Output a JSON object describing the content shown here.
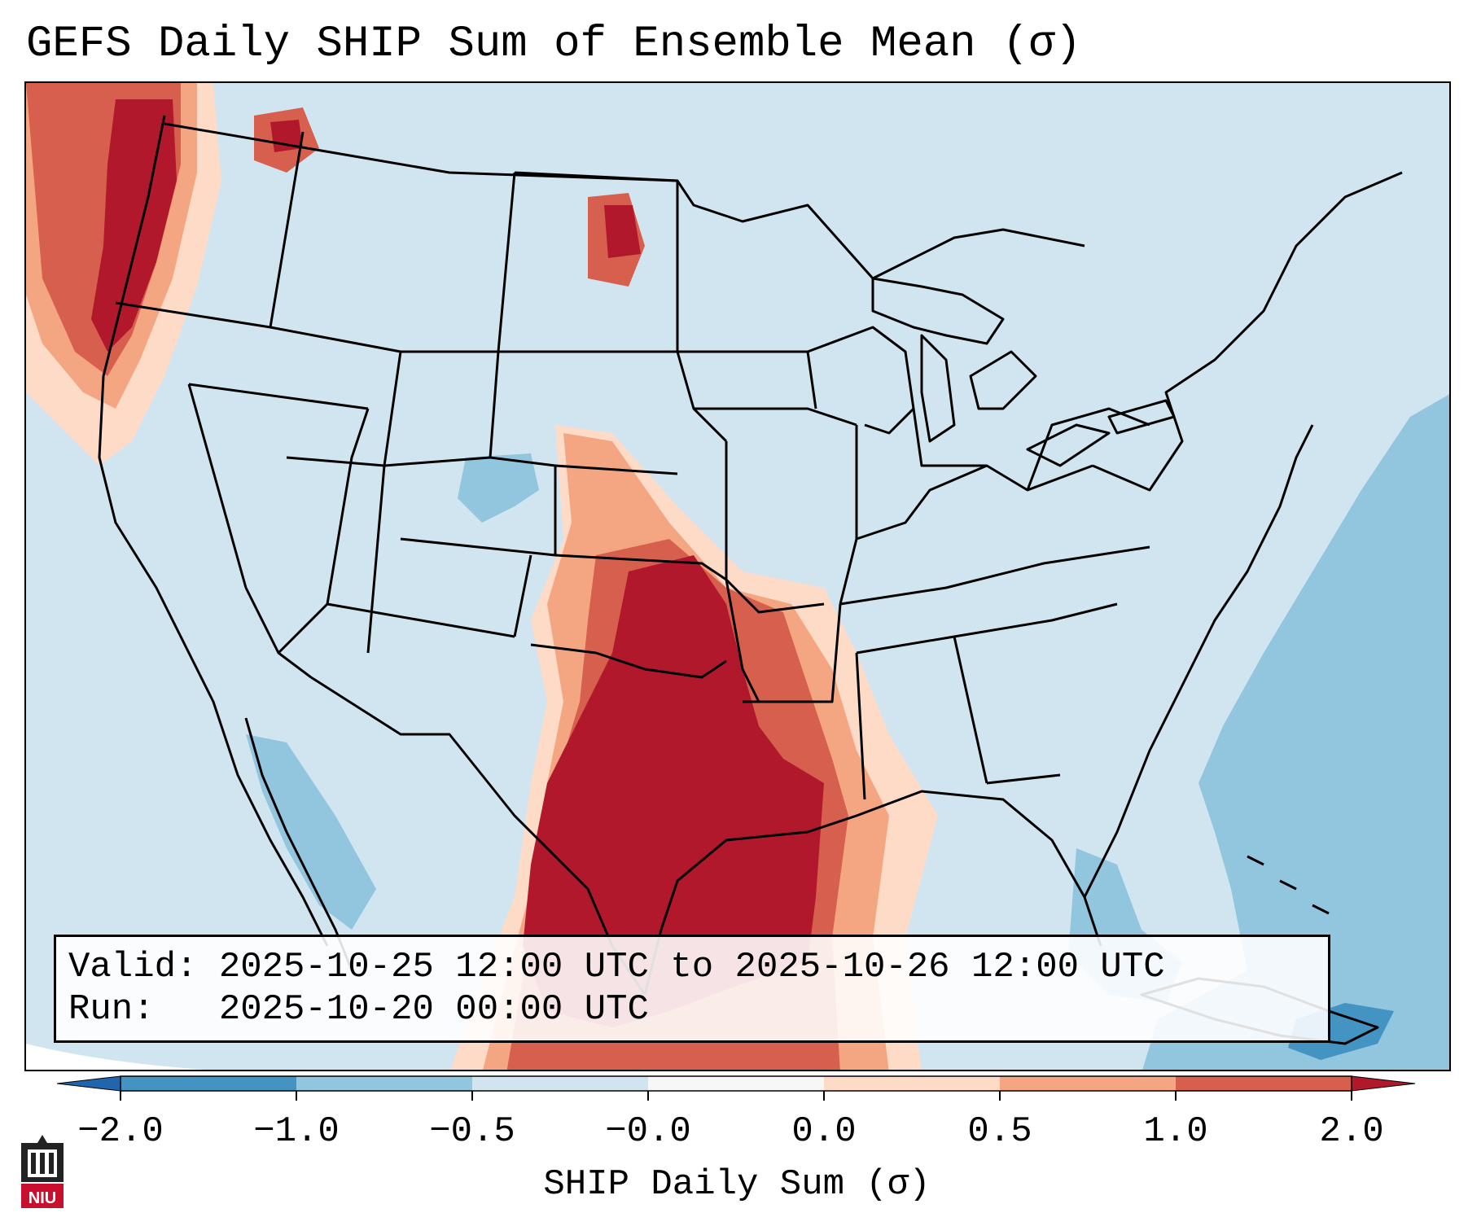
{
  "title": "GEFS Daily SHIP Sum of Ensemble Mean (σ)",
  "info": {
    "valid_label": "Valid:",
    "valid_value": "2025-10-25 12:00 UTC to 2025-10-26 12:00 UTC",
    "run_label": "Run:",
    "run_value": "2025-10-20 00:00 UTC"
  },
  "colorbar": {
    "label": "SHIP Daily Sum (σ)",
    "ticks": [
      "−2.0",
      "−1.0",
      "−0.5",
      "−0.0",
      "0.0",
      "0.5",
      "1.0",
      "2.0"
    ],
    "bins": [
      {
        "range": "-2.0 to -1.0",
        "color": "#4393c3"
      },
      {
        "range": "-1.0 to -0.5",
        "color": "#92c5de"
      },
      {
        "range": "-0.5 to -0.0",
        "color": "#d1e5f0"
      },
      {
        "range": "-0.0 to 0.0",
        "color": "#f7f7f7"
      },
      {
        "range": "0.0 to 0.5",
        "color": "#fddbc7"
      },
      {
        "range": "0.5 to 1.0",
        "color": "#f4a582"
      },
      {
        "range": "1.0 to 2.0",
        "color": "#d6604d"
      },
      {
        "range": "> 2.0",
        "color": "#b2182b"
      }
    ],
    "under_color": "#2166ac",
    "over_color": "#b2182b"
  },
  "logo": {
    "text": "NIU"
  },
  "colors": {
    "background_field": "#d1e5f0",
    "border_lines": "#000000"
  }
}
